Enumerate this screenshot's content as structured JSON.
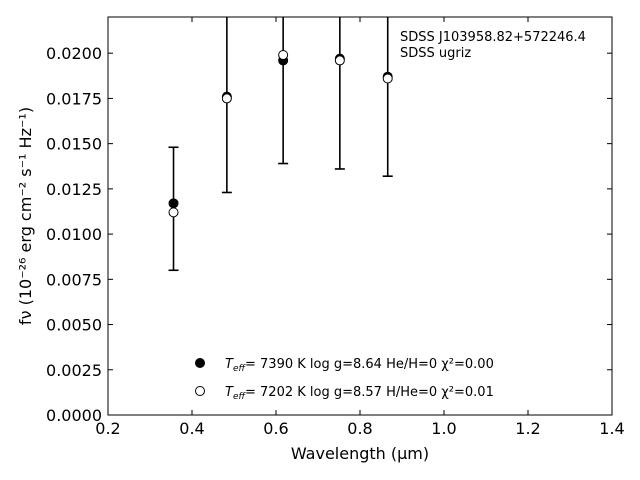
{
  "chart_data": {
    "type": "scatter",
    "annotation_lines": [
      "SDSS J103958.82+572246.4",
      "SDSS ugriz"
    ],
    "xlabel": "Wavelength (μm)",
    "ylabel": "fν (10⁻²⁶ erg cm⁻² s⁻¹ Hz⁻¹)",
    "xlim": [
      0.2,
      1.4
    ],
    "ylim": [
      0.0,
      0.022
    ],
    "x_ticks": [
      "0.2",
      "0.4",
      "0.6",
      "0.8",
      "1.0",
      "1.2",
      "1.4"
    ],
    "y_ticks": [
      "0.0000",
      "0.0025",
      "0.0050",
      "0.0075",
      "0.0100",
      "0.0125",
      "0.0150",
      "0.0175",
      "0.0200"
    ],
    "observed": {
      "x": [
        0.356,
        0.483,
        0.617,
        0.752,
        0.866
      ],
      "y": [
        0.0114,
        0.0176,
        0.0197,
        0.0197,
        0.0187
      ],
      "err_low": [
        0.008,
        0.0123,
        0.0139,
        0.0136,
        0.0132
      ],
      "err_high": [
        0.0148,
        0.023,
        0.023,
        0.023,
        0.023
      ]
    },
    "series": [
      {
        "name": "Teff= 7390 K log g=8.64 He/H=0 χ²=0.00",
        "marker": "filled",
        "x": [
          0.356,
          0.483,
          0.617,
          0.752,
          0.866
        ],
        "y": [
          0.0117,
          0.0176,
          0.0196,
          0.0197,
          0.0187
        ]
      },
      {
        "name": "Teff= 7202 K log g=8.57 H/He=0 χ²=0.01",
        "marker": "open",
        "x": [
          0.356,
          0.483,
          0.617,
          0.752,
          0.866
        ],
        "y": [
          0.0112,
          0.0175,
          0.0199,
          0.0196,
          0.0186
        ]
      }
    ],
    "legend": [
      {
        "teff_label": "T",
        "teff_sub": "eff",
        "rest": "=  7390 K  log g=8.64  He/H=0  χ²=0.00"
      },
      {
        "teff_label": "T",
        "teff_sub": "eff",
        "rest": "=  7202 K  log g=8.57  H/He=0  χ²=0.01"
      }
    ],
    "legend_position": "lower-center",
    "grid": false,
    "colors": {
      "marker": "#000000",
      "axes": "#000000",
      "background": "#ffffff"
    }
  }
}
